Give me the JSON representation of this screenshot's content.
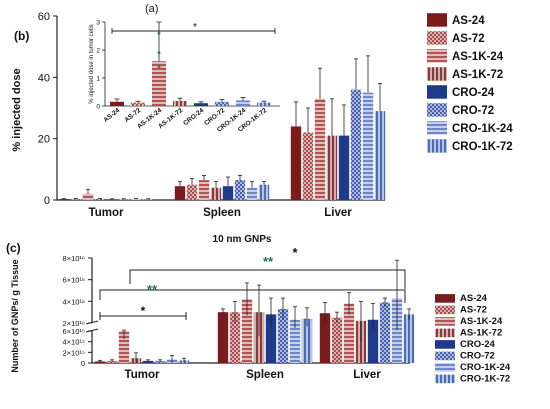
{
  "panels": {
    "a": "(a)",
    "b": "(b)",
    "c": "(c)"
  },
  "significance": {
    "star1": "*",
    "star2": "**"
  },
  "colors": {
    "AS-24": "#7a1c1c",
    "AS-72": "#a85050",
    "AS-1K-24": "#b35454",
    "AS-1K-72": "#8a3a3a",
    "CRO-24": "#1f3a8a",
    "CRO-72": "#4a62b4",
    "CRO-1K-24": "#6e86c8",
    "CRO-1K-72": "#4c6cb8"
  },
  "patterns": {
    "AS-24": "solid",
    "AS-72": "checker",
    "AS-1K-24": "hlines",
    "AS-1K-72": "vlines",
    "CRO-24": "solid",
    "CRO-72": "checker",
    "CRO-1K-24": "hlines",
    "CRO-1K-72": "vlines"
  },
  "chart_data": [
    {
      "id": "b",
      "type": "bar",
      "title": "",
      "ylabel": "% injected dose",
      "xlabel": "",
      "categories": [
        "Tumor",
        "Spleen",
        "Liver"
      ],
      "ylim": [
        0,
        60
      ],
      "yticks": [
        "0",
        "20",
        "40",
        "60"
      ],
      "legend_position": "right",
      "series": [
        {
          "name": "AS-24",
          "values": [
            0.3,
            4.5,
            24
          ],
          "err": [
            0.2,
            1.5,
            8
          ]
        },
        {
          "name": "AS-72",
          "values": [
            0.3,
            5,
            22
          ],
          "err": [
            0.2,
            2,
            8
          ]
        },
        {
          "name": "AS-1K-24",
          "values": [
            2,
            6.5,
            33
          ],
          "err": [
            1.5,
            1.5,
            10
          ]
        },
        {
          "name": "AS-1K-72",
          "values": [
            0.3,
            4,
            21
          ],
          "err": [
            0.2,
            2,
            12
          ]
        },
        {
          "name": "CRO-24",
          "values": [
            0.2,
            4.5,
            21
          ],
          "err": [
            0.2,
            3,
            10
          ]
        },
        {
          "name": "CRO-72",
          "values": [
            0.2,
            6.5,
            36
          ],
          "err": [
            0.2,
            1.5,
            10
          ]
        },
        {
          "name": "CRO-1K-24",
          "values": [
            0.3,
            4,
            35
          ],
          "err": [
            0.2,
            2,
            12
          ]
        },
        {
          "name": "CRO-1K-72",
          "values": [
            0.2,
            5,
            29
          ],
          "err": [
            0.2,
            1,
            9
          ]
        }
      ]
    },
    {
      "id": "a",
      "type": "bar",
      "title": "",
      "ylabel": "% injected dose in tumor cells",
      "xlabel": "",
      "categories": [
        "AS-24",
        "AS-72",
        "AS-1K-24",
        "AS-1K-72",
        "CRO-24",
        "CRO-72",
        "CRO-1K-24",
        "CRO-1K-72"
      ],
      "values": [
        0.15,
        0.12,
        1.6,
        0.18,
        0.1,
        0.15,
        0.2,
        0.12
      ],
      "err": [
        0.1,
        0.05,
        1.4,
        0.1,
        0.05,
        0.08,
        0.1,
        0.05
      ],
      "ylim": [
        0,
        3
      ],
      "yticks": [
        "0",
        "1",
        "2",
        "3"
      ],
      "significance_star": "*"
    },
    {
      "id": "c",
      "type": "bar",
      "title": "10 nm GNPs",
      "ylabel": "Number of GNPs/ g Tissue",
      "xlabel": "",
      "categories": [
        "Tumor",
        "Spleen",
        "Liver"
      ],
      "broken_axis": true,
      "lower_yticks": [
        "0",
        "2×10¹⁵",
        "4×10¹⁵",
        "6×10¹⁵"
      ],
      "upper_yticks": [
        "2×10¹⁶",
        "4×10¹⁶",
        "6×10¹⁶",
        "8×10¹⁶"
      ],
      "legend_position": "right",
      "series": [
        {
          "name": "AS-24",
          "values": [
            300000000000000.0,
            3e+16,
            2.9e+16
          ],
          "err": [
            200000000000000.0,
            3000000000000000.0,
            1e+16
          ]
        },
        {
          "name": "AS-72",
          "values": [
            400000000000000.0,
            3e+16,
            2.5e+16
          ],
          "err": [
            200000000000000.0,
            1e+16,
            5000000000000000.0
          ]
        },
        {
          "name": "AS-1K-24",
          "values": [
            6000000000000000.0,
            4.2e+16,
            3.8e+16
          ],
          "err": [
            1500000000000000.0,
            1.5e+16,
            1e+16
          ]
        },
        {
          "name": "AS-1K-72",
          "values": [
            900000000000000.0,
            3e+16,
            2.2e+16
          ],
          "err": [
            1000000000000000.0,
            2.5e+16,
            1.8e+16
          ]
        },
        {
          "name": "CRO-24",
          "values": [
            400000000000000.0,
            2.8e+16,
            2.3e+16
          ],
          "err": [
            200000000000000.0,
            1.5e+16,
            1.5e+16
          ]
        },
        {
          "name": "CRO-72",
          "values": [
            400000000000000.0,
            3.3e+16,
            3.9e+16
          ],
          "err": [
            200000000000000.0,
            1e+16,
            4000000000000000.0
          ]
        },
        {
          "name": "CRO-1K-24",
          "values": [
            700000000000000.0,
            2.3e+16,
            4.3e+16
          ],
          "err": [
            700000000000000.0,
            1.2e+16,
            3.5e+16
          ]
        },
        {
          "name": "CRO-1K-72",
          "values": [
            500000000000000.0,
            2.4e+16,
            2.8e+16
          ],
          "err": [
            400000000000000.0,
            1e+16,
            5000000000000000.0
          ]
        }
      ]
    }
  ]
}
